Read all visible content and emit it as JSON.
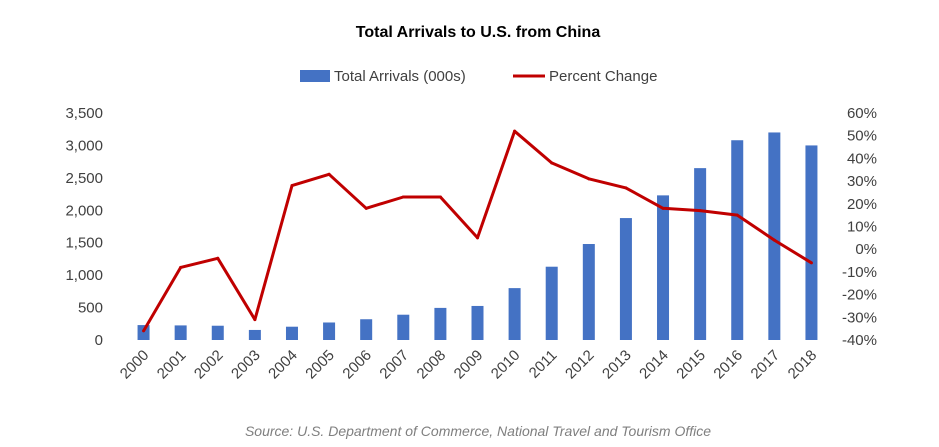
{
  "chart_data": {
    "type": "bar",
    "title": "Total Arrivals to U.S. from China",
    "categories": [
      "2000",
      "2001",
      "2002",
      "2003",
      "2004",
      "2005",
      "2006",
      "2007",
      "2008",
      "2009",
      "2010",
      "2011",
      "2012",
      "2013",
      "2014",
      "2015",
      "2016",
      "2017",
      "2018"
    ],
    "series": [
      {
        "name": "Total Arrivals (000s)",
        "type": "bar",
        "axis": "left",
        "color": "#4472C4",
        "values": [
          230,
          225,
          220,
          155,
          205,
          270,
          320,
          390,
          495,
          525,
          800,
          1130,
          1480,
          1880,
          2230,
          2650,
          3080,
          3200,
          3000
        ]
      },
      {
        "name": "Percent Change",
        "type": "line",
        "axis": "right",
        "color": "#C00000",
        "values": [
          -36,
          -8,
          -4,
          -31,
          28,
          33,
          18,
          23,
          23,
          5,
          52,
          38,
          31,
          27,
          18,
          17,
          15,
          4,
          -6
        ]
      }
    ],
    "y_left": {
      "ylim": [
        0,
        3500
      ],
      "ticks": [
        "0",
        "500",
        "1,000",
        "1,500",
        "2,000",
        "2,500",
        "3,000",
        "3,500"
      ]
    },
    "y_right": {
      "ylim": [
        -40,
        60
      ],
      "ticks": [
        "-40%",
        "-30%",
        "-20%",
        "-10%",
        "0%",
        "10%",
        "20%",
        "30%",
        "40%",
        "50%",
        "60%"
      ]
    },
    "grid": false,
    "legend_position": "top-center",
    "source": "Source: U.S. Department of Commerce, National Travel and Tourism Office"
  }
}
